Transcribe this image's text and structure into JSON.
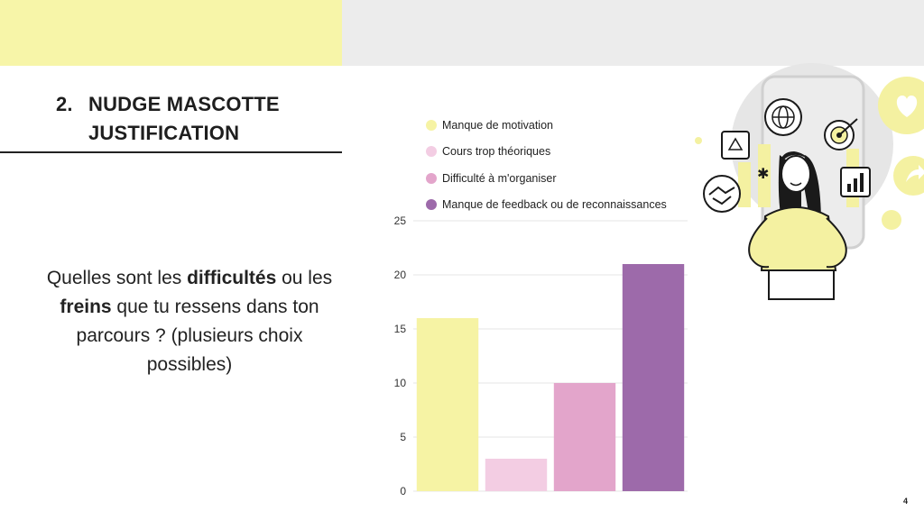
{
  "slide": {
    "number_label": "2.",
    "title_line1": "NUDGE MASCOTTE",
    "title_line2": "JUSTIFICATION",
    "question": {
      "t1": "Quelles sont les ",
      "b1": "difficultés",
      "t2": " ou les ",
      "b2": "freins",
      "t3": " que tu ressens dans ton parcours ? (plusieurs choix possibles)"
    },
    "page_number": "4"
  },
  "chart_data": {
    "type": "bar",
    "categories": [
      "Manque de motivation",
      "Cours trop théoriques",
      "Difficulté à m'organiser",
      "Manque de feedback ou de reconnaissances"
    ],
    "values": [
      16,
      3,
      10,
      21
    ],
    "colors": [
      "#f6f3a4",
      "#f3cde3",
      "#e3a5cb",
      "#9d6aaa"
    ],
    "ylim": [
      0,
      25
    ],
    "yticks": [
      0,
      5,
      10,
      15,
      20,
      25
    ],
    "grid": true,
    "legend_position": "top"
  },
  "illustration": {
    "subject": "woman-mascot-with-icons",
    "colors": {
      "yellow": "#f4f1a1",
      "grey": "#e6e6e6",
      "ink": "#1a1a1a"
    }
  }
}
